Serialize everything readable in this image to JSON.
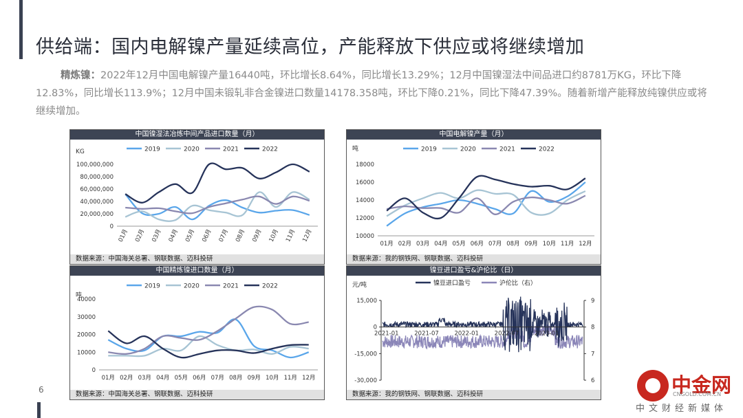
{
  "page": {
    "title": "供给端：国内电解镍产量延续高位，产能释放下供应或将继续增加",
    "para_lead": "精炼镍：",
    "para_body": "2022年12月中国电解镍产量16440吨，环比增长8.64%，同比增长13.29%；12月中国镍湿法中间品进口约8781万KG，环比下降12.83%，同比增长113.9%；12月中国未锻轧非合金镍进口数量14178.358吨，环比下降0.21%，同比下降47.39%。随着新增产能释放纯镍供应或将继续增加。",
    "page_number": "6",
    "logo_text": "中金网",
    "logo_url": "CNGOLD.COM.CN",
    "logo_sub": "中文财经新媒体"
  },
  "colors": {
    "c2019": "#5aa6ea",
    "c2020": "#a7c4d4",
    "c2021": "#8a88b0",
    "c2022": "#26335a",
    "ratio": "#8b86b8"
  },
  "chart_data": [
    {
      "type": "line",
      "title": "中国镍湿法冶炼中间产品进口数量（月）",
      "unit": "KG",
      "source": "数据来源：中国海关总署、钢联数据、迈科投研",
      "categories": [
        "01月",
        "02月",
        "03月",
        "04月",
        "05月",
        "06月",
        "07月",
        "08月",
        "09月",
        "10月",
        "11月",
        "12月"
      ],
      "y_ticks": [
        "0",
        "20,000,000",
        "40,000,000",
        "60,000,000",
        "80,000,000",
        "100,000,000"
      ],
      "ylim": [
        0,
        100000000
      ],
      "series": [
        {
          "name": "2019",
          "values": [
            52000000,
            21000000,
            20000000,
            31000000,
            11000000,
            33000000,
            42000000,
            30000000,
            22000000,
            25000000,
            26000000,
            18000000
          ]
        },
        {
          "name": "2020",
          "values": [
            15000000,
            24000000,
            11000000,
            10000000,
            33000000,
            26000000,
            22000000,
            18000000,
            55000000,
            31000000,
            55000000,
            43000000
          ]
        },
        {
          "name": "2021",
          "values": [
            30000000,
            28000000,
            29000000,
            24000000,
            21000000,
            31000000,
            37000000,
            43000000,
            48000000,
            36000000,
            48000000,
            41000000
          ]
        },
        {
          "name": "2022",
          "values": [
            52000000,
            38000000,
            55000000,
            68000000,
            54000000,
            100000000,
            92000000,
            94000000,
            77000000,
            87000000,
            100000000,
            88000000
          ]
        }
      ]
    },
    {
      "type": "line",
      "title": "中国电解镍产量（月）",
      "unit": "吨",
      "source": "数据来源：我的钢铁网、钢联数据、迈科投研",
      "categories": [
        "01月",
        "02月",
        "03月",
        "04月",
        "05月",
        "06月",
        "07月",
        "08月",
        "09月",
        "10月",
        "11月",
        "12月"
      ],
      "y_ticks": [
        "10000",
        "12000",
        "14000",
        "16000",
        "18000"
      ],
      "ylim": [
        10000,
        18000
      ],
      "series": [
        {
          "name": "2019",
          "values": [
            11100,
            12500,
            13200,
            13600,
            14000,
            13600,
            13000,
            12500,
            15000,
            13800,
            14400,
            16000
          ]
        },
        {
          "name": "2020",
          "values": [
            12200,
            13400,
            14200,
            14800,
            14200,
            15100,
            14700,
            14600,
            12600,
            12500,
            14000,
            15000
          ]
        },
        {
          "name": "2021",
          "values": [
            13000,
            13300,
            13100,
            13100,
            12600,
            14200,
            12400,
            13800,
            14300,
            14000,
            13600,
            14500
          ]
        },
        {
          "name": "2022",
          "values": [
            12800,
            14200,
            12600,
            12000,
            14200,
            16600,
            16300,
            15800,
            15500,
            15600,
            15200,
            16440
          ]
        }
      ]
    },
    {
      "type": "line",
      "title": "中国精炼镍进口数量（月）",
      "unit": "吨",
      "source": "数据来源：中国海关总署、钢联数据、迈科投研",
      "categories": [
        "01月",
        "02月",
        "03月",
        "04月",
        "05月",
        "06月",
        "07月",
        "08月",
        "09月",
        "10月",
        "11月",
        "12月"
      ],
      "y_ticks": [
        "0",
        "10000",
        "20000",
        "30000",
        "40000"
      ],
      "ylim": [
        0,
        40000
      ],
      "series": [
        {
          "name": "2019",
          "values": [
            17000,
            12000,
            11000,
            19000,
            19000,
            21500,
            21000,
            28500,
            13500,
            11000,
            7000,
            10000
          ]
        },
        {
          "name": "2020",
          "values": [
            8000,
            8000,
            8000,
            12000,
            11000,
            19000,
            14000,
            11000,
            11500,
            9000,
            13000,
            12000
          ]
        },
        {
          "name": "2021",
          "values": [
            10000,
            9000,
            12000,
            19000,
            18000,
            17000,
            22000,
            29000,
            35500,
            34000,
            26000,
            27000
          ]
        },
        {
          "name": "2022",
          "values": [
            22000,
            15000,
            19000,
            12000,
            7000,
            9000,
            11000,
            11000,
            9500,
            12000,
            14000,
            14178
          ]
        }
      ]
    },
    {
      "type": "line",
      "title": "镍豆进口盈亏&沪伦比（日）",
      "unit": "元/吨",
      "source": "数据来源：我的钢铁网、钢联数据、迈科投研",
      "x_ticks": [
        "2021-01",
        "2021-07",
        "2022-01",
        "2022-07",
        "2023-01"
      ],
      "y_ticks": [
        "-30,000",
        "-15,000",
        "0",
        "15,000"
      ],
      "y2_ticks": [
        "6",
        "7",
        "8",
        "9"
      ],
      "ylim": [
        -30000,
        15000
      ],
      "y2lim": [
        6,
        9
      ],
      "series": [
        {
          "name": "镍豆进口盈亏",
          "axis": "left"
        },
        {
          "name": "沪伦比（右）",
          "axis": "right"
        }
      ]
    }
  ]
}
